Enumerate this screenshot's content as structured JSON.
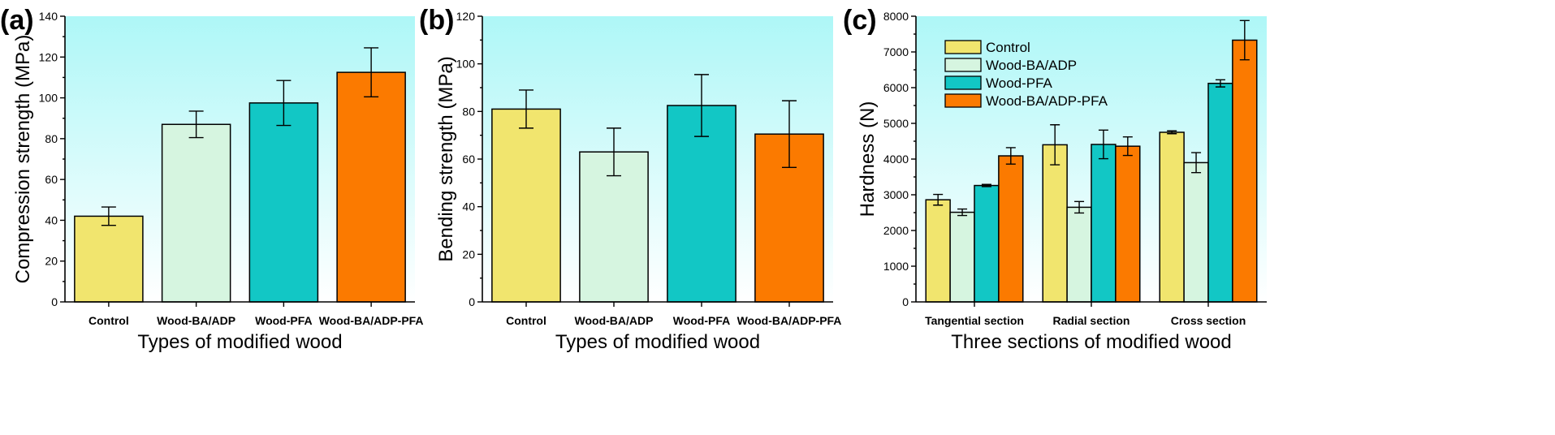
{
  "colors": {
    "background_top": "#aef7f7",
    "background_bottom": "#ffffff",
    "Control": "#f1e56e",
    "Wood-BA/ADP": "#d6f5e0",
    "Wood-PFA": "#12c7c5",
    "Wood-BA/ADP-PFA": "#fb7a00"
  },
  "chart_data": [
    {
      "type": "bar",
      "panel_label": "(a)",
      "xlabel": "Types of modified wood",
      "ylabel": "Compression strength (MPa)",
      "ylim": [
        0,
        140
      ],
      "yticks": [
        0,
        20,
        40,
        60,
        80,
        100,
        120,
        140
      ],
      "categories": [
        "Control",
        "Wood-BA/ADP",
        "Wood-PFA",
        "Wood-BA/ADP-PFA"
      ],
      "values": [
        42,
        87,
        97.5,
        112.5
      ],
      "errors": [
        4.5,
        6.5,
        11,
        12
      ],
      "grid": false
    },
    {
      "type": "bar",
      "panel_label": "(b)",
      "xlabel": "Types of modified wood",
      "ylabel": "Bending strength (MPa)",
      "ylim": [
        0,
        120
      ],
      "yticks": [
        0,
        20,
        40,
        60,
        80,
        100,
        120
      ],
      "categories": [
        "Control",
        "Wood-BA/ADP",
        "Wood-PFA",
        "Wood-BA/ADP-PFA"
      ],
      "values": [
        81,
        63,
        82.5,
        70.5
      ],
      "errors": [
        8,
        10,
        13,
        14
      ],
      "grid": false
    },
    {
      "type": "bar",
      "panel_label": "(c)",
      "xlabel": "Three sections of modified wood",
      "ylabel": "Hardness (N)",
      "ylim": [
        0,
        8000
      ],
      "yticks": [
        0,
        1000,
        2000,
        3000,
        4000,
        5000,
        6000,
        7000,
        8000
      ],
      "categories": [
        "Tangential section",
        "Radial section",
        "Cross section"
      ],
      "legend_position": "top-left",
      "series": [
        {
          "name": "Control",
          "values": [
            2860,
            4400,
            4750
          ],
          "errors": [
            150,
            560,
            40
          ]
        },
        {
          "name": "Wood-BA/ADP",
          "values": [
            2510,
            2650,
            3900
          ],
          "errors": [
            90,
            160,
            280
          ]
        },
        {
          "name": "Wood-PFA",
          "values": [
            3260,
            4410,
            6120
          ],
          "errors": [
            30,
            400,
            100
          ]
        },
        {
          "name": "Wood-BA/ADP-PFA",
          "values": [
            4090,
            4360,
            7330
          ],
          "errors": [
            230,
            260,
            550
          ]
        }
      ],
      "grid": false
    }
  ]
}
